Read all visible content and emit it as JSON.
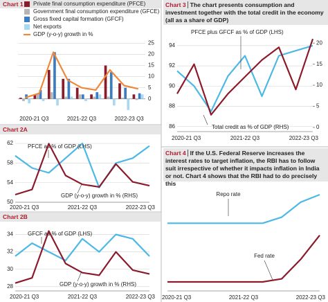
{
  "chart_data": [
    {
      "type": "bar",
      "title": "Chart 1",
      "categories": [
        "2020-21 Q3",
        null,
        null,
        null,
        "2021-22 Q3",
        null,
        null,
        null,
        "2022-23 Q3"
      ],
      "series": [
        {
          "name": "Private final consumption expenditure (PFCE)",
          "color": "#8b1a2b",
          "values": [
            0.5,
            2,
            13,
            9,
            5,
            2,
            15,
            7,
            2
          ]
        },
        {
          "name": "Government final consumption expenditure (GFCE)",
          "color": "#b5b5b5",
          "values": [
            -1,
            2.5,
            3,
            1,
            2,
            1,
            1,
            0.5,
            -0.5
          ]
        },
        {
          "name": "Gross fixed capital formation (GFCF)",
          "color": "#3b7dc4",
          "values": [
            2,
            4,
            21,
            9,
            2,
            3,
            12,
            5,
            2.5
          ]
        },
        {
          "name": "Net exports",
          "color": "#a9d8f2",
          "values": [
            -2,
            -1,
            -3,
            1,
            -1,
            2,
            -3,
            -5,
            2
          ]
        },
        {
          "name": "GDP (y-o-y) growth in %",
          "color": "#f0883a",
          "type": "line",
          "values": [
            0.5,
            2.5,
            21,
            8.5,
            5,
            4,
            13,
            6,
            4.5
          ]
        }
      ],
      "ylim": [
        -6,
        27
      ],
      "yticks": [
        0,
        5,
        10,
        15,
        20,
        25
      ],
      "grid": true
    },
    {
      "type": "line",
      "title": "Chart 2A",
      "categories": [
        "2020-21 Q3",
        null,
        null,
        null,
        "2021-22 Q3",
        null,
        null,
        null,
        "2022-23 Q3"
      ],
      "series": [
        {
          "name": "PFCE as % of GDP (LHS)",
          "color": "#4cb8e6",
          "values": [
            59.5,
            57,
            56,
            59,
            62,
            53,
            58,
            59,
            61.5
          ]
        },
        {
          "name": "GDP (y-o-y) growth in % (RHS)",
          "color": "#8b1a2b",
          "axis": "y2",
          "values": [
            1,
            3,
            21,
            8.5,
            5,
            4,
            13,
            6,
            4.5
          ]
        }
      ],
      "ylim": [
        50,
        63
      ],
      "yticks": [
        50,
        54,
        58,
        62
      ],
      "y2lim": [
        -2,
        23
      ],
      "grid": true
    },
    {
      "type": "line",
      "title": "Chart 2B",
      "categories": [
        "2020-21 Q3",
        null,
        null,
        null,
        "2021-22 Q3",
        null,
        null,
        null,
        "2022-23 Q3"
      ],
      "series": [
        {
          "name": "GFCF as % of GDP (LHS)",
          "color": "#4cb8e6",
          "values": [
            31.5,
            33,
            32,
            31,
            33.5,
            32,
            34,
            33.5,
            31.5
          ]
        },
        {
          "name": "GDP (y-o-y) growth in % (RHS)",
          "color": "#8b1a2b",
          "axis": "y2",
          "values": [
            1,
            3,
            21,
            8.5,
            5,
            4,
            13,
            6,
            4.5
          ]
        }
      ],
      "ylim": [
        27.5,
        35
      ],
      "yticks": [
        28,
        30,
        32,
        34
      ],
      "y2lim": [
        -2,
        23
      ],
      "grid": true
    },
    {
      "type": "line",
      "title": "Chart 3",
      "description": "The chart presents consumption and investment together with the total credit in the economy (all as a share of GDP)",
      "categories": [
        "2020-21 Q3",
        null,
        null,
        null,
        "2021-22 Q3",
        null,
        null,
        null,
        "2022-23 Q3"
      ],
      "series": [
        {
          "name": "PFCE plus GFCF as % of GDP (LHS)",
          "color": "#4cb8e6",
          "values": [
            91.5,
            90,
            87.5,
            91,
            93,
            89,
            93,
            93.5,
            94
          ]
        },
        {
          "name": "Total credit as % of GDP (RHS)",
          "color": "#8b1a2b",
          "axis": "y2",
          "values": [
            8,
            15,
            3,
            8,
            12,
            16,
            19,
            9,
            21
          ]
        }
      ],
      "ylim": [
        85.5,
        95.5
      ],
      "yticks": [
        86,
        88,
        90,
        92,
        94
      ],
      "y2lim": [
        -1,
        23
      ],
      "y2ticks": [
        0,
        5,
        10,
        15,
        20
      ],
      "grid": true
    },
    {
      "type": "line",
      "title": "Chart 4",
      "description": "If the U.S. Federal Reserve increases the interest rates to target inflation, the RBI has to follow suit irrespective of whether it impacts inflation in India or not. Chart 4 shows that the RBI had to do precisely this",
      "categories": [
        "2020-21 Q3",
        null,
        null,
        null,
        "2021-22 Q3",
        null,
        null,
        null,
        "2022-23 Q3"
      ],
      "series": [
        {
          "name": "Repo rate",
          "color": "#4cb8e6",
          "values": [
            4,
            4,
            4,
            4,
            4,
            4,
            4.4,
            5.4,
            5.9
          ]
        },
        {
          "name": "Fed rate",
          "color": "#8b1a2b",
          "values": [
            0.1,
            0.1,
            0.1,
            0.1,
            0.1,
            0.1,
            0.3,
            1.6,
            3.2
          ]
        }
      ],
      "ylim": [
        -0.5,
        6.5
      ],
      "grid": false
    }
  ]
}
